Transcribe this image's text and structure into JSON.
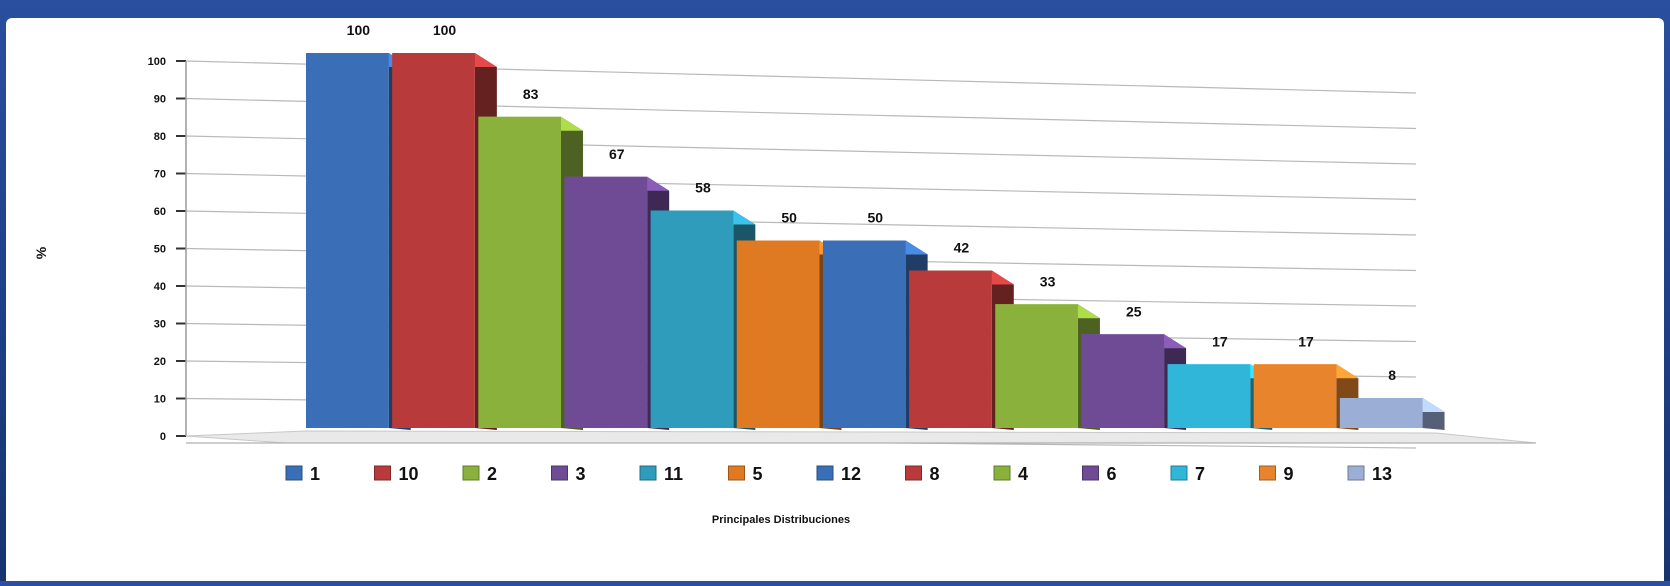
{
  "title": "",
  "chart_data": {
    "type": "bar",
    "categories": [
      "1",
      "10",
      "2",
      "3",
      "11",
      "5",
      "12",
      "8",
      "4",
      "6",
      "7",
      "9",
      "13"
    ],
    "values": [
      100,
      100,
      83,
      67,
      58,
      50,
      50,
      42,
      33,
      25,
      17,
      17,
      8
    ],
    "value_labels": [
      "100",
      "100",
      "83",
      "67",
      "58",
      "50",
      "50",
      "42",
      "33",
      "25",
      "17",
      "17",
      "8"
    ],
    "xlabel": "Principales Distribuciones",
    "ylabel": "%",
    "ylim": [
      0,
      100
    ],
    "y_ticks": [
      "0",
      "10",
      "20",
      "30",
      "40",
      "50",
      "60",
      "70",
      "80",
      "90",
      "100"
    ],
    "grid": true,
    "legend_position": "bottom",
    "colors": [
      "#3a6fb7",
      "#b83a3a",
      "#8bb13d",
      "#6f4b96",
      "#2f9cbc",
      "#e07a22",
      "#3a6fb7",
      "#b83a3a",
      "#8bb13d",
      "#6f4b96",
      "#2fb6d8",
      "#e8852c",
      "#9aaed6"
    ]
  }
}
